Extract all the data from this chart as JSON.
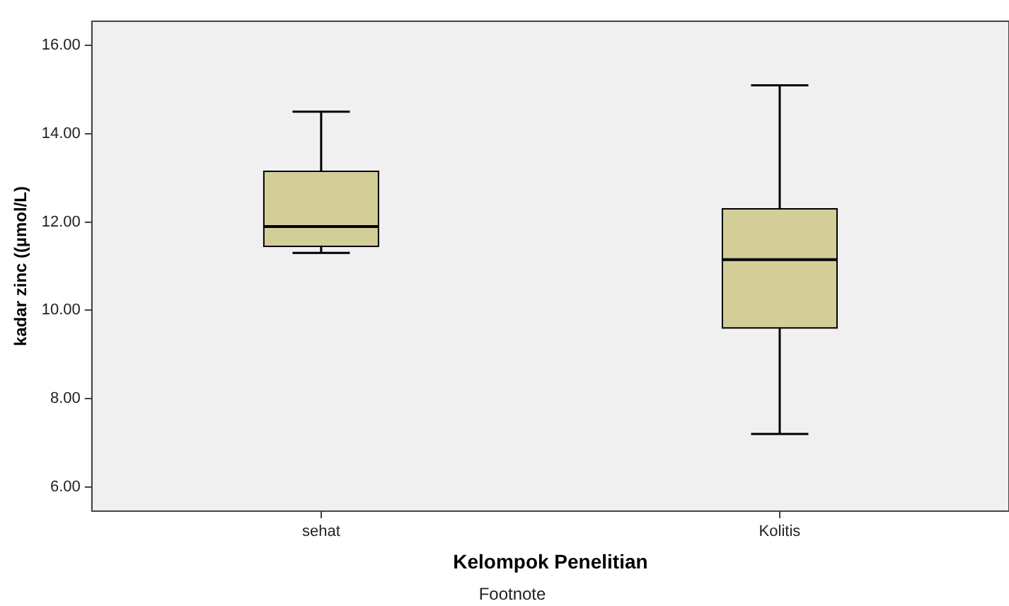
{
  "chart_data": {
    "type": "box",
    "xlabel": "Kelompok Penelitian",
    "ylabel": "kadar zinc ((µmol/L)",
    "categories": [
      "sehat",
      "Kolitis"
    ],
    "color": "#d3cd98",
    "boxes": [
      {
        "low": 11.3,
        "q1": 11.45,
        "median": 11.9,
        "q3": 13.15,
        "high": 14.5
      },
      {
        "low": 7.2,
        "q1": 9.6,
        "median": 11.15,
        "q3": 12.3,
        "high": 15.1
      }
    ],
    "ylim": [
      5.45,
      16.55
    ],
    "yticks": [
      {
        "value": 6,
        "label": "6.00"
      },
      {
        "value": 8,
        "label": "8.00"
      },
      {
        "value": 10,
        "label": "10.00"
      },
      {
        "value": 12,
        "label": "12.00"
      },
      {
        "value": 14,
        "label": "14.00"
      },
      {
        "value": 16,
        "label": "16.00"
      }
    ],
    "grid": false,
    "legend": false,
    "annotations": [
      "Footnote"
    ]
  }
}
